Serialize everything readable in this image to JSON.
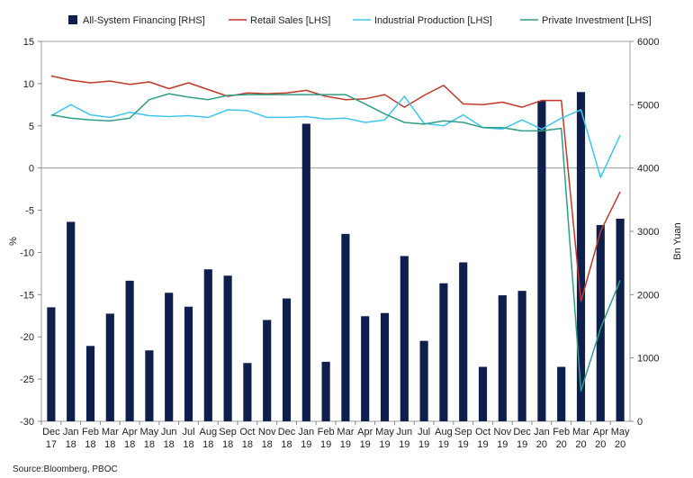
{
  "chart_data": {
    "type": "bar+line",
    "categories": [
      [
        "Dec",
        "17"
      ],
      [
        "Jan",
        "18"
      ],
      [
        "Feb",
        "18"
      ],
      [
        "Mar",
        "18"
      ],
      [
        "Apr",
        "18"
      ],
      [
        "May",
        "18"
      ],
      [
        "Jun",
        "18"
      ],
      [
        "Jul",
        "18"
      ],
      [
        "Aug",
        "18"
      ],
      [
        "Sep",
        "18"
      ],
      [
        "Oct",
        "18"
      ],
      [
        "Nov",
        "18"
      ],
      [
        "Dec",
        "18"
      ],
      [
        "Jan",
        "19"
      ],
      [
        "Feb",
        "19"
      ],
      [
        "Mar",
        "19"
      ],
      [
        "Apr",
        "19"
      ],
      [
        "May",
        "19"
      ],
      [
        "Jun",
        "19"
      ],
      [
        "Jul",
        "19"
      ],
      [
        "Aug",
        "19"
      ],
      [
        "Sep",
        "19"
      ],
      [
        "Oct",
        "19"
      ],
      [
        "Nov",
        "19"
      ],
      [
        "Dec",
        "19"
      ],
      [
        "Jan",
        "20"
      ],
      [
        "Feb",
        "20"
      ],
      [
        "Mar",
        "20"
      ],
      [
        "Apr",
        "20"
      ],
      [
        "May",
        "20"
      ]
    ],
    "left_axis": {
      "label": "%",
      "min": -30,
      "max": 15,
      "ticks": [
        15,
        10,
        5,
        0,
        -5,
        -10,
        -15,
        -20,
        -25,
        -30
      ]
    },
    "right_axis": {
      "label": "Bn Yuan",
      "min": 0,
      "max": 6000,
      "ticks": [
        6000,
        5000,
        4000,
        3000,
        2000,
        1000,
        0
      ]
    },
    "series": [
      {
        "name": "All-System Financing [RHS]",
        "type": "bar",
        "axis": "right",
        "color": "#0e1f4d",
        "values": [
          1800,
          3150,
          1190,
          1700,
          2220,
          1120,
          2030,
          1810,
          2400,
          2300,
          920,
          1600,
          1940,
          4700,
          940,
          2960,
          1660,
          1710,
          2610,
          1270,
          2180,
          2510,
          860,
          1990,
          2060,
          5060,
          860,
          5200,
          3100,
          3200
        ]
      },
      {
        "name": "Retail Sales [LHS]",
        "type": "line",
        "axis": "left",
        "color": "#c0392b",
        "values": [
          10.9,
          10.4,
          10.1,
          10.3,
          9.9,
          10.2,
          9.4,
          10.1,
          9.3,
          8.5,
          8.9,
          8.8,
          8.9,
          9.2,
          8.5,
          8.1,
          8.2,
          8.7,
          7.2,
          8.6,
          9.8,
          7.6,
          7.5,
          7.8,
          7.2,
          8.0,
          8.0,
          -15.8,
          -7.5,
          -2.8
        ]
      },
      {
        "name": "Industrial Production [LHS]",
        "type": "line",
        "axis": "left",
        "color": "#3ec6f0",
        "values": [
          6.2,
          7.5,
          6.3,
          6.0,
          6.6,
          6.2,
          6.1,
          6.2,
          6.0,
          6.9,
          6.8,
          6.0,
          6.0,
          6.1,
          5.8,
          5.9,
          5.4,
          5.7,
          8.5,
          5.3,
          5.0,
          6.3,
          4.8,
          4.6,
          5.7,
          4.6,
          5.9,
          6.9,
          -1.1,
          3.9
        ]
      },
      {
        "name": "Private Investment [LHS]",
        "type": "line",
        "axis": "left",
        "color": "#2f9e84",
        "values": [
          6.3,
          5.9,
          5.7,
          5.6,
          5.9,
          8.1,
          8.8,
          8.4,
          8.1,
          8.6,
          8.7,
          8.7,
          8.7,
          8.7,
          8.7,
          8.7,
          7.6,
          6.4,
          5.4,
          5.2,
          5.6,
          5.4,
          4.8,
          4.8,
          4.4,
          4.4,
          4.7,
          -26.4,
          -19.0,
          -13.3
        ]
      }
    ],
    "source": "Source:Bloomberg, PBOC"
  }
}
